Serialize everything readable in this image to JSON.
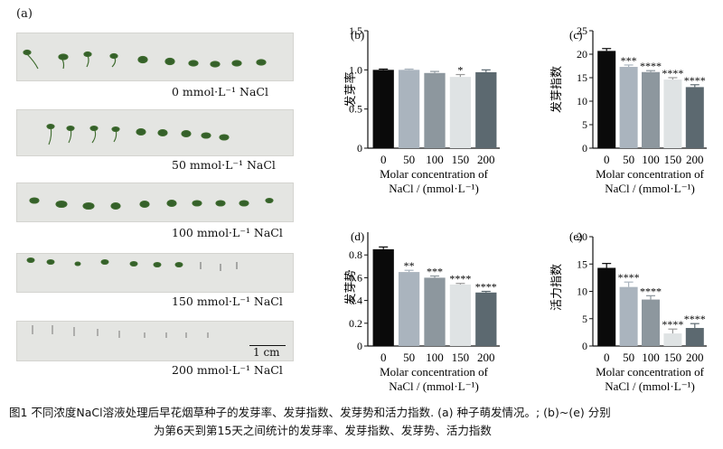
{
  "panel_a": {
    "label": "(a)",
    "rows": [
      {
        "caption": "0 mmol·L⁻¹  NaCl"
      },
      {
        "caption": "50 mmol·L⁻¹  NaCl"
      },
      {
        "caption": "100 mmol·L⁻¹  NaCl"
      },
      {
        "caption": "150 mmol·L⁻¹  NaCl"
      },
      {
        "caption": "200 mmol·L⁻¹  NaCl"
      }
    ],
    "scale_bar": "1 cm"
  },
  "caption": {
    "line1": "图1   不同浓度NaCl溶液处理后早花烟草种子的发芽率、发芽指数、发芽势和活力指数. (a) 种子萌发情况。; (b)~(e) 分别",
    "line2": "为第6天到第15天之间统计的发芽率、发芽指数、发芽势、活力指数"
  },
  "chart_data": [
    {
      "panel": "(b)",
      "type": "bar",
      "categories": [
        "0",
        "50",
        "100",
        "150",
        "200"
      ],
      "values": [
        1.0,
        1.0,
        0.96,
        0.91,
        0.97
      ],
      "errors": [
        0.01,
        0.01,
        0.02,
        0.03,
        0.03
      ],
      "significance": [
        "",
        "",
        "",
        "*",
        ""
      ],
      "ylabel": "发芽率",
      "xlabel_line1": "Molar concentration of",
      "xlabel_line2": "NaCl / (mmol·L⁻¹)",
      "ylim": [
        0,
        1.5
      ],
      "yticks": [
        "0",
        "0.5",
        "1.0",
        "1.5"
      ],
      "colors": [
        "#0a0a0a",
        "#aab4be",
        "#8d979e",
        "#dfe3e4",
        "#5c6970"
      ]
    },
    {
      "panel": "(c)",
      "type": "bar",
      "categories": [
        "0",
        "50",
        "100",
        "150",
        "200"
      ],
      "values": [
        20.7,
        17.3,
        16.2,
        14.6,
        13.0
      ],
      "errors": [
        0.5,
        0.4,
        0.3,
        0.4,
        0.5
      ],
      "significance": [
        "",
        "***",
        "****",
        "****",
        "****"
      ],
      "ylabel": "发芽指数",
      "xlabel_line1": "Molar concentration of",
      "xlabel_line2": "NaCl / (mmol·L⁻¹)",
      "ylim": [
        0,
        25
      ],
      "yticks": [
        "0",
        "5",
        "10",
        "15",
        "20",
        "25"
      ],
      "colors": [
        "#0a0a0a",
        "#aab4be",
        "#8d979e",
        "#dfe3e4",
        "#5c6970"
      ]
    },
    {
      "panel": "(d)",
      "type": "bar",
      "categories": [
        "0",
        "50",
        "100",
        "150",
        "200"
      ],
      "values": [
        0.85,
        0.65,
        0.6,
        0.54,
        0.47
      ],
      "errors": [
        0.02,
        0.015,
        0.015,
        0.01,
        0.01
      ],
      "significance": [
        "",
        "**",
        "***",
        "****",
        "****"
      ],
      "ylabel": "发芽势",
      "xlabel_line1": "Molar concentration of",
      "xlabel_line2": "NaCl / (mmol·L⁻¹)",
      "ylim": [
        0,
        1.0
      ],
      "yticks": [
        "0",
        "0.2",
        "0.4",
        "0.6",
        "0.8"
      ],
      "colors": [
        "#0a0a0a",
        "#aab4be",
        "#8d979e",
        "#dfe3e4",
        "#5c6970"
      ]
    },
    {
      "panel": "(e)",
      "type": "bar",
      "categories": [
        "0",
        "50",
        "100",
        "150",
        "200"
      ],
      "values": [
        14.3,
        10.8,
        8.5,
        2.3,
        3.3
      ],
      "errors": [
        0.8,
        0.9,
        0.7,
        0.8,
        0.8
      ],
      "significance": [
        "",
        "****",
        "****",
        "****",
        "****"
      ],
      "ylabel": "活力指数",
      "xlabel_line1": "Molar concentration of",
      "xlabel_line2": "NaCl / (mmol·L⁻¹)",
      "ylim": [
        0,
        20
      ],
      "yticks": [
        "0",
        "5",
        "10",
        "15",
        "20"
      ],
      "colors": [
        "#0a0a0a",
        "#aab4be",
        "#8d979e",
        "#dfe3e4",
        "#5c6970"
      ]
    }
  ]
}
